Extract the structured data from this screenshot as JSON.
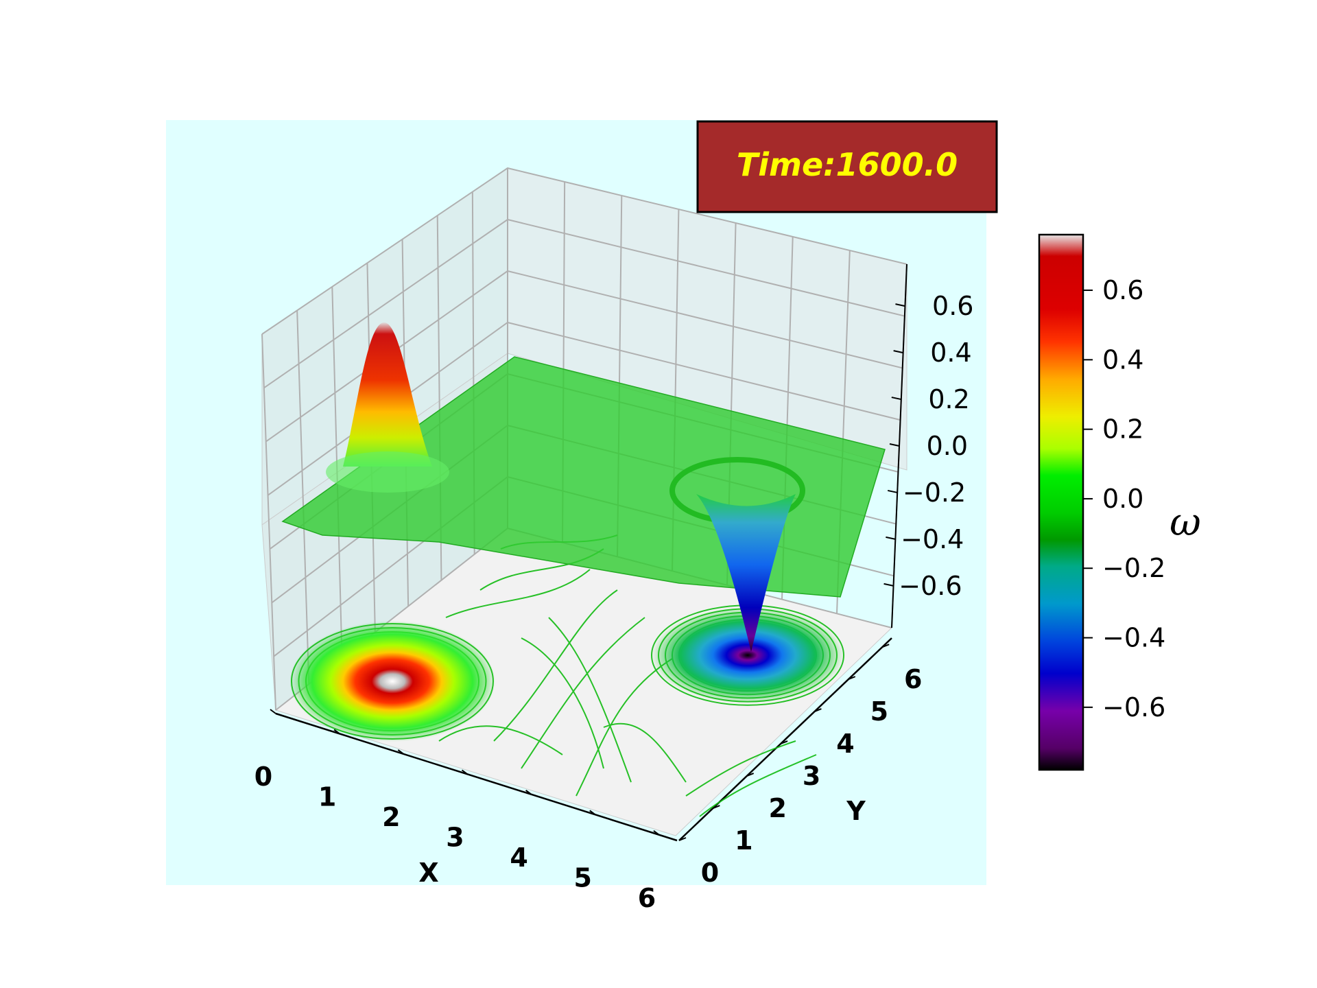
{
  "chart_data": {
    "type": "surface",
    "time_label": "Time:1600.0",
    "xlabel": "X",
    "ylabel": "Y",
    "colorbar_label": "ω",
    "xlim": [
      0,
      6.28
    ],
    "ylim": [
      0,
      6.28
    ],
    "zlim": [
      -0.78,
      0.78
    ],
    "x_ticks": [
      "0",
      "1",
      "2",
      "3",
      "4",
      "5",
      "6"
    ],
    "y_ticks": [
      "0",
      "1",
      "2",
      "3",
      "4",
      "5",
      "6"
    ],
    "z_ticks": [
      "0.6",
      "0.4",
      "0.2",
      "0.0",
      "−0.2",
      "−0.4",
      "−0.6"
    ],
    "colorbar_ticks": [
      "0.6",
      "0.4",
      "0.2",
      "0.0",
      "−0.2",
      "−0.4",
      "−0.6"
    ],
    "colorbar_range": [
      -0.78,
      0.76
    ],
    "colormap": "nipy_spectral",
    "vortices": [
      {
        "sign": "positive",
        "x": 1.57,
        "y": 4.71,
        "peak": 0.76
      },
      {
        "sign": "negative",
        "x": 4.71,
        "y": 1.57,
        "peak": -0.78
      }
    ],
    "background_color": "#e0ffff",
    "time_box_color": "#a52a2a",
    "time_text_color": "#ffff00",
    "grid": true
  }
}
